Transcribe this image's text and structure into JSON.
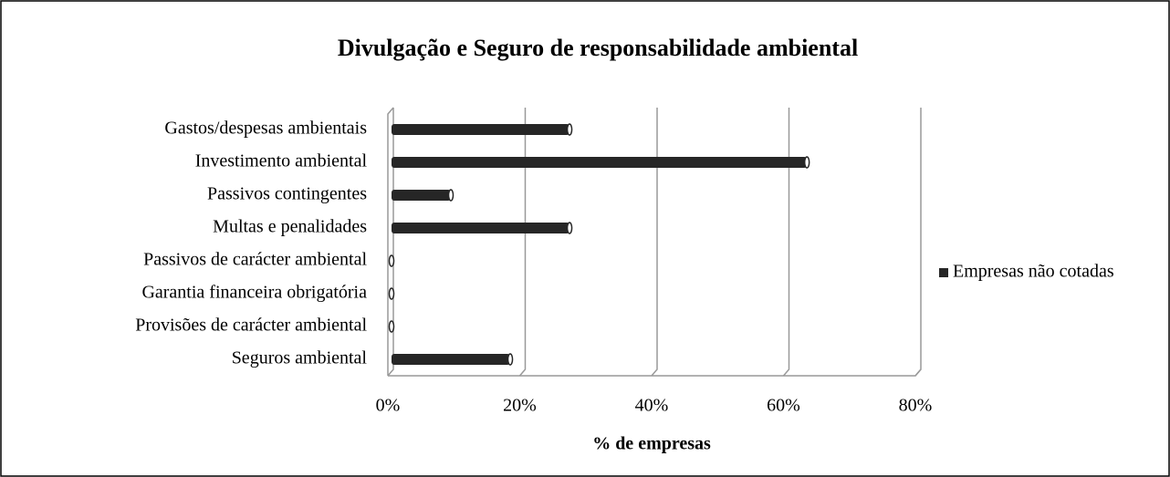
{
  "chart_data": {
    "type": "bar",
    "orientation": "horizontal",
    "title": "Divulgação e Seguro de responsabilidade ambiental",
    "x_label": "% de empresas",
    "categories": [
      "Gastos/despesas ambientais",
      "Investimento ambiental",
      "Passivos contingentes",
      "Multas e penalidades",
      "Passivos de carácter ambiental",
      "Garantia financeira obrigatória",
      "Provisões de carácter ambiental",
      "Seguros ambiental"
    ],
    "series": [
      {
        "name": "Empresas não cotadas",
        "color": "#262626",
        "values": [
          27,
          63,
          9,
          27,
          0,
          0,
          0,
          18
        ]
      }
    ],
    "xlim": [
      0,
      80
    ],
    "xticks": [
      {
        "value": 0,
        "label": "0%"
      },
      {
        "value": 20,
        "label": "20%"
      },
      {
        "value": 40,
        "label": "40%"
      },
      {
        "value": 60,
        "label": "60%"
      },
      {
        "value": 80,
        "label": "80%"
      }
    ],
    "grid": true,
    "legend": "right"
  }
}
